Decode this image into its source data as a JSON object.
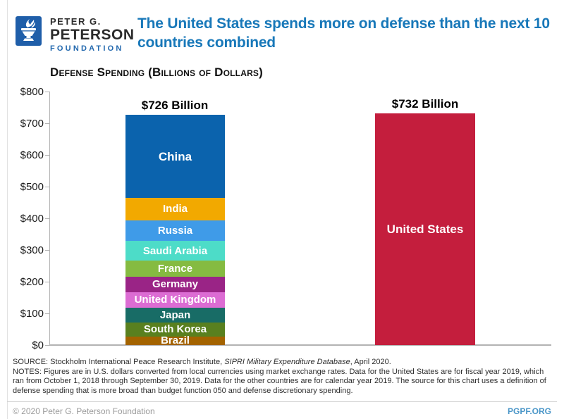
{
  "header": {
    "logo": {
      "line1": "PETER G.",
      "line2": "PETERSON",
      "line3": "FOUNDATION",
      "brand_blue": "#1f5ea9"
    },
    "title": "The United States spends more on defense than the next 10 countries combined",
    "title_color": "#1878b9"
  },
  "chart_title": "Defense Spending (Billions of Dollars)",
  "chart_data": {
    "type": "bar",
    "subtype": "stacked",
    "title": "Defense Spending (Billions of Dollars)",
    "unit": "billions of U.S. dollars",
    "ylim": [
      0,
      800
    ],
    "grid": false,
    "yticks": [
      {
        "value": 0,
        "label": "$0"
      },
      {
        "value": 100,
        "label": "$100"
      },
      {
        "value": 200,
        "label": "$200"
      },
      {
        "value": 300,
        "label": "$300"
      },
      {
        "value": 400,
        "label": "$400"
      },
      {
        "value": 500,
        "label": "$500"
      },
      {
        "value": 600,
        "label": "$600"
      },
      {
        "value": 700,
        "label": "$700"
      },
      {
        "value": 800,
        "label": "$800"
      }
    ],
    "bars": [
      {
        "id": "next10",
        "total_label": "$726 Billion",
        "total": 725.6,
        "segments": [
          {
            "label": "China",
            "value": 261.0,
            "color": "#0b63ad"
          },
          {
            "label": "India",
            "value": 71.1,
            "color": "#f2a900"
          },
          {
            "label": "Russia",
            "value": 65.1,
            "color": "#3f9be8"
          },
          {
            "label": "Saudi Arabia",
            "value": 61.9,
            "color": "#4ddcc8"
          },
          {
            "label": "France",
            "value": 50.1,
            "color": "#85bb41"
          },
          {
            "label": "Germany",
            "value": 49.3,
            "color": "#9a2486"
          },
          {
            "label": "United Kingdom",
            "value": 48.7,
            "color": "#dc6cd3"
          },
          {
            "label": "Japan",
            "value": 47.6,
            "color": "#186c66"
          },
          {
            "label": "South Korea",
            "value": 43.9,
            "color": "#59801f"
          },
          {
            "label": "Brazil",
            "value": 26.9,
            "color": "#a36300"
          }
        ]
      },
      {
        "id": "us",
        "total_label": "$732 Billion",
        "total": 732.0,
        "segments": [
          {
            "label": "United States",
            "value": 732.0,
            "color": "#c41e3d"
          }
        ]
      }
    ]
  },
  "notes": {
    "source_prefix": "SOURCE: Stockholm International Peace Research Institute, ",
    "source_italic": "SIPRI Military Expenditure Database",
    "source_suffix": ", April 2020.",
    "notes_text": "NOTES: Figures are in U.S. dollars converted from local currencies using market exchange rates. Data for the United States are for fiscal year 2019, which ran from October 1, 2018 through September 30, 2019. Data for the other countries are for calendar year 2019. The source for this chart uses a definition of defense spending that is more broad than budget function 050 and defense discretionary spending."
  },
  "footer": {
    "copyright": "© 2020 Peter G. Peterson Foundation",
    "site": "PGPF.ORG"
  }
}
